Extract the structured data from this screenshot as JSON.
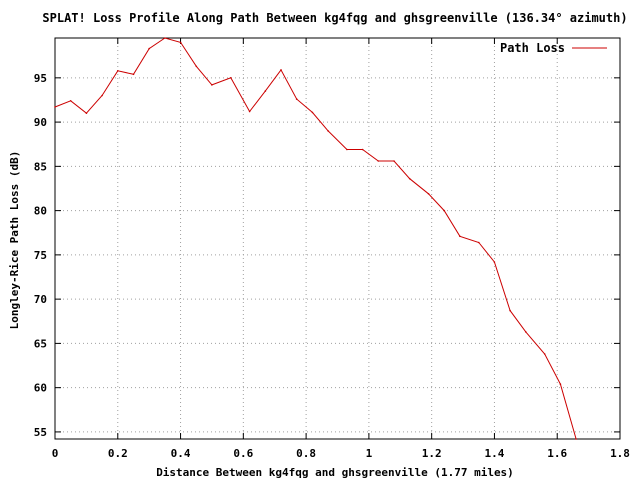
{
  "chart_data": {
    "type": "line",
    "title": "SPLAT! Loss Profile Along Path Between kg4fqg and ghsgreenville (136.34° azimuth)",
    "xlabel": "Distance Between kg4fqg and ghsgreenville (1.77 miles)",
    "ylabel": "Longley-Rice Path Loss (dB)",
    "xlim": [
      0,
      1.8
    ],
    "ylim": [
      54.2,
      99.5
    ],
    "x_ticks": [
      "0",
      "0.2",
      "0.4",
      "0.6",
      "0.8",
      "1",
      "1.2",
      "1.4",
      "1.6",
      "1.8"
    ],
    "y_ticks": [
      "55",
      "60",
      "65",
      "70",
      "75",
      "80",
      "85",
      "90",
      "95"
    ],
    "grid": true,
    "legend_position": "top-right",
    "series": [
      {
        "name": "Path Loss",
        "color": "#cc0000",
        "x": [
          0,
          0.05,
          0.1,
          0.15,
          0.2,
          0.25,
          0.3,
          0.35,
          0.4,
          0.45,
          0.5,
          0.56,
          0.62,
          0.67,
          0.72,
          0.77,
          0.82,
          0.87,
          0.93,
          0.98,
          1.03,
          1.08,
          1.13,
          1.19,
          1.24,
          1.29,
          1.35,
          1.4,
          1.45,
          1.5,
          1.56,
          1.61,
          1.66
        ],
        "y": [
          91.7,
          92.4,
          91.0,
          93.0,
          95.8,
          95.4,
          98.3,
          99.5,
          99.0,
          96.3,
          94.2,
          95.0,
          91.2,
          93.5,
          95.9,
          92.6,
          91.1,
          89.0,
          86.9,
          86.9,
          85.6,
          85.6,
          83.6,
          81.9,
          80.0,
          77.1,
          76.4,
          74.2,
          68.7,
          66.3,
          63.8,
          60.4,
          54.2
        ]
      }
    ]
  }
}
